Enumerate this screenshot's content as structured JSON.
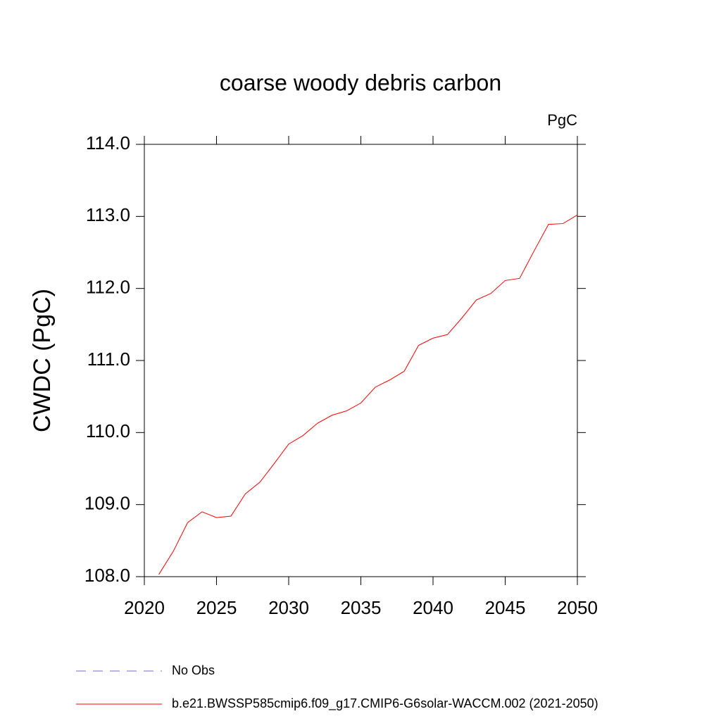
{
  "chart_data": {
    "type": "line",
    "title": "coarse woody debris carbon",
    "units": "PgC",
    "ylabel": "CWDC  (PgC)",
    "x": [
      2021,
      2022,
      2023,
      2024,
      2025,
      2026,
      2027,
      2028,
      2029,
      2030,
      2031,
      2032,
      2033,
      2034,
      2035,
      2036,
      2037,
      2038,
      2039,
      2040,
      2041,
      2042,
      2043,
      2044,
      2045,
      2046,
      2047,
      2048,
      2049,
      2050
    ],
    "series": [
      {
        "name": "No Obs",
        "color": "#7766cc",
        "dashed": true,
        "values": [
          null,
          null,
          null,
          null,
          null,
          null,
          null,
          null,
          null,
          null,
          null,
          null,
          null,
          null,
          null,
          null,
          null,
          null,
          null,
          null,
          null,
          null,
          null,
          null,
          null,
          null,
          null,
          null,
          null,
          null
        ]
      },
      {
        "name": "b.e21.BWSSP585cmip6.f09_g17.CMIP6-G6solar-WACCM.002 (2021-2050)",
        "color": "#ff0000",
        "dashed": false,
        "values": [
          108.03,
          108.35,
          108.75,
          108.9,
          108.82,
          108.84,
          109.15,
          109.31,
          109.57,
          109.84,
          109.96,
          110.13,
          110.24,
          110.3,
          110.41,
          110.63,
          110.73,
          110.85,
          111.21,
          111.31,
          111.36,
          111.59,
          111.84,
          111.93,
          112.11,
          112.14,
          112.52,
          112.89,
          112.9,
          113.02
        ]
      }
    ],
    "xlim": [
      2020,
      2050
    ],
    "xticks": [
      2020,
      2025,
      2030,
      2035,
      2040,
      2045,
      2050
    ],
    "ylim": [
      108,
      114
    ],
    "yticks": [
      {
        "value": 108,
        "label": "108.0"
      },
      {
        "value": 109,
        "label": "109.0"
      },
      {
        "value": 110,
        "label": "110.0"
      },
      {
        "value": 111,
        "label": "111.0"
      },
      {
        "value": 112,
        "label": "112.0"
      },
      {
        "value": 113,
        "label": "113.0"
      },
      {
        "value": 114,
        "label": "114.0"
      }
    ]
  }
}
